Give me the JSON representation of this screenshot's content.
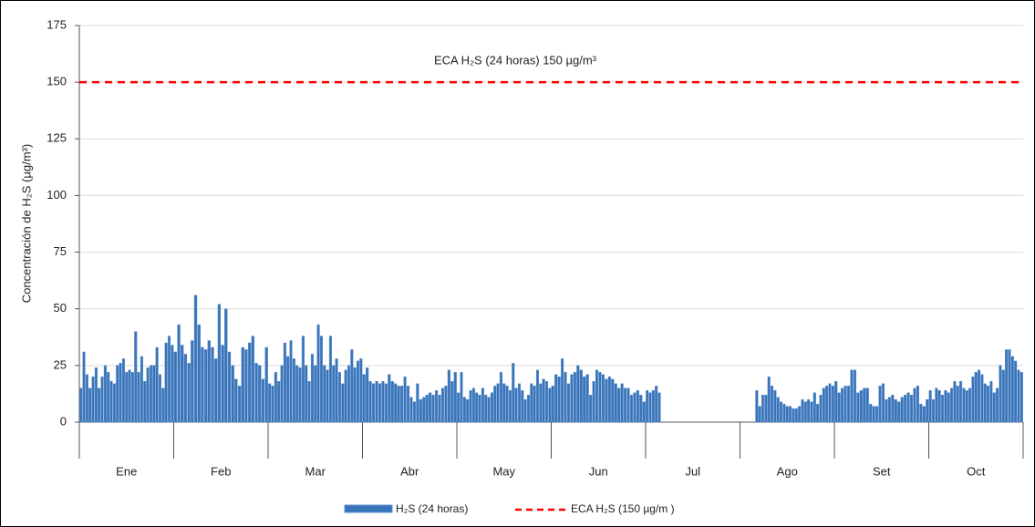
{
  "chart_data": {
    "type": "bar",
    "y_label": "Concentración de H₂S (µg/m³)",
    "categories": [
      "Ene",
      "Feb",
      "Mar",
      "Abr",
      "May",
      "Jun",
      "Jul",
      "Ago",
      "Set",
      "Oct"
    ],
    "series": [
      {
        "name": "H₂S (24 horas)",
        "color": "#3a74b8",
        "values": [
          [
            15,
            31,
            21,
            15,
            20,
            24,
            15,
            20,
            25,
            22,
            18,
            17,
            25,
            26,
            28,
            22,
            23,
            22,
            40,
            22,
            29,
            18,
            24,
            25,
            25,
            33,
            21,
            15,
            35,
            38,
            34
          ],
          [
            31,
            43,
            34,
            30,
            26,
            36,
            56,
            43,
            33,
            32,
            36,
            33,
            28,
            52,
            34,
            50,
            31,
            25,
            19,
            16,
            33,
            32,
            35,
            38,
            26,
            25,
            19,
            33
          ],
          [
            17,
            16,
            22,
            18,
            25,
            35,
            29,
            36,
            28,
            25,
            24,
            38,
            25,
            18,
            30,
            25,
            43,
            38,
            25,
            23,
            38,
            25,
            28,
            22,
            17,
            23,
            25,
            32,
            24,
            27,
            28
          ],
          [
            21,
            24,
            18,
            17,
            18,
            17,
            18,
            17,
            21,
            18,
            17,
            16,
            16,
            20,
            16,
            11,
            9,
            17,
            10,
            11,
            12,
            13,
            12,
            14,
            12,
            15,
            16,
            23,
            18,
            22
          ],
          [
            13,
            22,
            11,
            10,
            14,
            15,
            13,
            12,
            15,
            12,
            11,
            13,
            16,
            17,
            22,
            17,
            16,
            14,
            26,
            15,
            17,
            14,
            10,
            12,
            17,
            16,
            23,
            17,
            19,
            18,
            15
          ],
          [
            16,
            21,
            20,
            28,
            22,
            17,
            21,
            22,
            25,
            23,
            20,
            21,
            12,
            18,
            23,
            22,
            21,
            19,
            20,
            19,
            17,
            15,
            17,
            15,
            15,
            12,
            13,
            14,
            12,
            9
          ],
          [
            14,
            13,
            14,
            16,
            13,
            null,
            null,
            null,
            null,
            null,
            null,
            null,
            null,
            null,
            null,
            null,
            null,
            null,
            null,
            null,
            null,
            null,
            null,
            null,
            null,
            null,
            null,
            null,
            null,
            null,
            null
          ],
          [
            null,
            null,
            null,
            null,
            null,
            14,
            7,
            12,
            12,
            20,
            16,
            14,
            11,
            9,
            8,
            7,
            7,
            6,
            6,
            7,
            10,
            9,
            10,
            9,
            13,
            8,
            12,
            15,
            16,
            17,
            16
          ],
          [
            18,
            13,
            15,
            16,
            16,
            23,
            23,
            13,
            14,
            15,
            15,
            8,
            7,
            7,
            16,
            17,
            10,
            11,
            12,
            10,
            9,
            11,
            12,
            13,
            12,
            15,
            16,
            8,
            7,
            10
          ],
          [
            14,
            10,
            15,
            14,
            12,
            14,
            13,
            15,
            18,
            16,
            18,
            15,
            14,
            15,
            20,
            22,
            23,
            21,
            17,
            16,
            18,
            13,
            15,
            25,
            23,
            32,
            32,
            29,
            27,
            23,
            22
          ]
        ]
      }
    ],
    "reference_line": {
      "value": 150,
      "color": "#ff0000",
      "label": "ECA H₂S (24 horas) 150 µg/m³",
      "name": "ECA H₂S (150 µg/m )"
    },
    "ylim": [
      0,
      175
    ],
    "yticks": [
      0,
      25,
      50,
      75,
      100,
      125,
      150,
      175
    ],
    "grid": true
  }
}
